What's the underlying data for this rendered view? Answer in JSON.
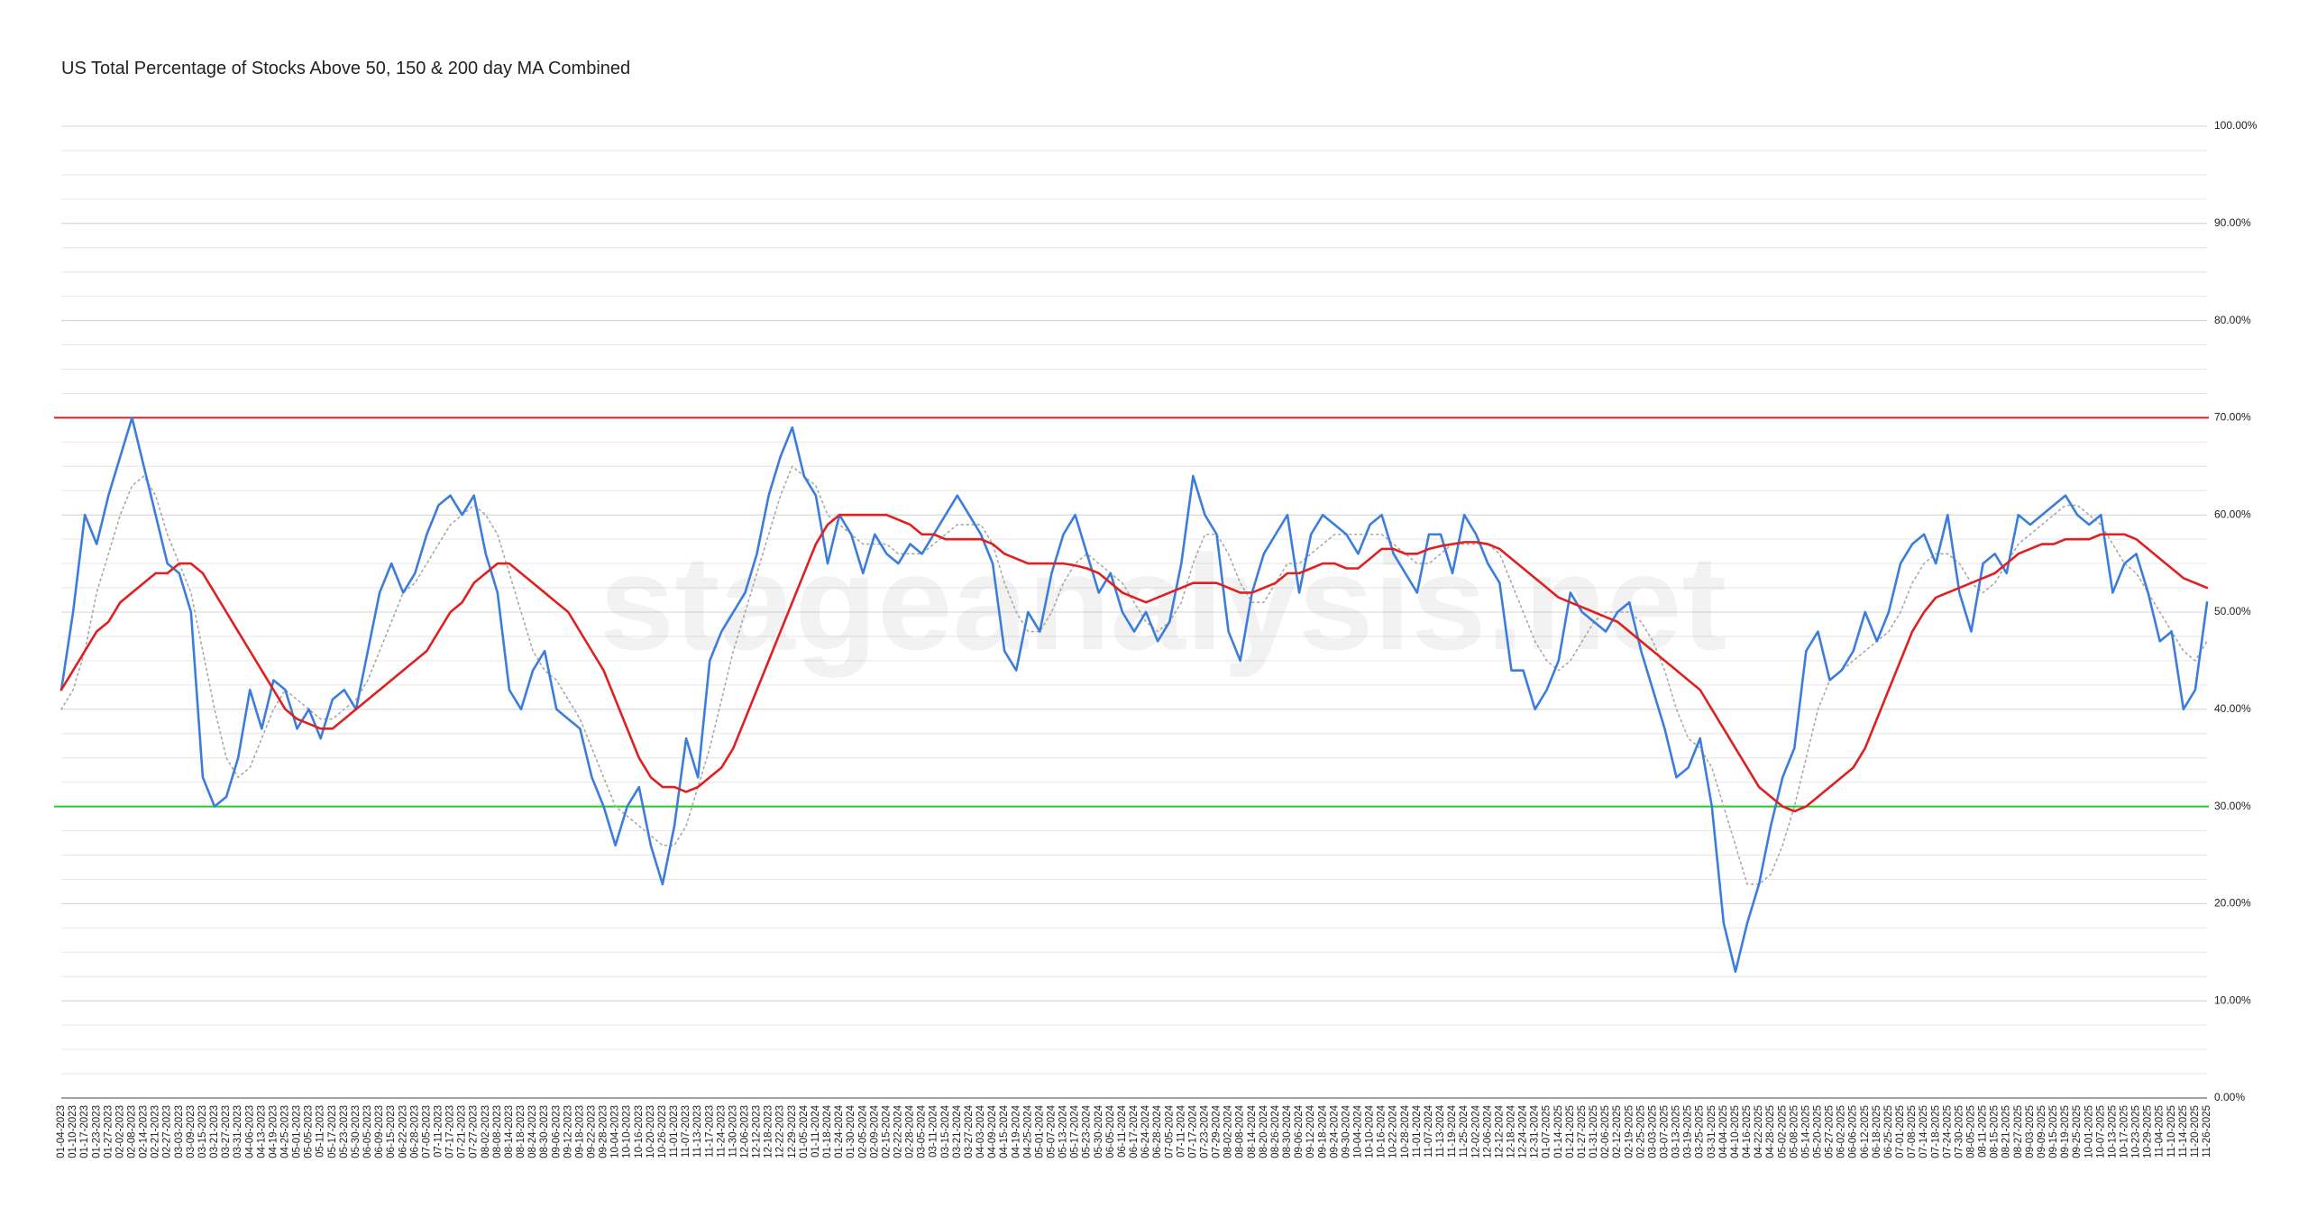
{
  "chart_data": {
    "type": "line",
    "title": "US Total Percentage of Stocks Above 50, 150 & 200 day MA Combined",
    "watermark": "stageanalysis.net",
    "categories": [
      "01-04-2023",
      "01-10-2023",
      "01-17-2023",
      "01-23-2023",
      "01-27-2023",
      "02-02-2023",
      "02-08-2023",
      "02-14-2023",
      "02-21-2023",
      "02-27-2023",
      "03-03-2023",
      "03-09-2023",
      "03-15-2023",
      "03-21-2023",
      "03-27-2023",
      "03-31-2023",
      "04-06-2023",
      "04-13-2023",
      "04-19-2023",
      "04-25-2023",
      "05-01-2023",
      "05-05-2023",
      "05-11-2023",
      "05-17-2023",
      "05-23-2023",
      "05-30-2023",
      "06-05-2023",
      "06-09-2023",
      "06-15-2023",
      "06-22-2023",
      "06-28-2023",
      "07-05-2023",
      "07-11-2023",
      "07-17-2023",
      "07-21-2023",
      "07-27-2023",
      "08-02-2023",
      "08-08-2023",
      "08-14-2023",
      "08-18-2023",
      "08-24-2023",
      "08-30-2023",
      "09-06-2023",
      "09-12-2023",
      "09-18-2023",
      "09-22-2023",
      "09-28-2023",
      "10-04-2023",
      "10-10-2023",
      "10-16-2023",
      "10-20-2023",
      "10-26-2023",
      "11-01-2023",
      "11-07-2023",
      "11-13-2023",
      "11-17-2023",
      "11-24-2023",
      "11-30-2023",
      "12-06-2023",
      "12-12-2023",
      "12-18-2023",
      "12-22-2023",
      "12-29-2023",
      "01-05-2024",
      "01-11-2024",
      "01-18-2024",
      "01-24-2024",
      "01-30-2024",
      "02-05-2024",
      "02-09-2024",
      "02-15-2024",
      "02-22-2024",
      "02-28-2024",
      "03-05-2024",
      "03-11-2024",
      "03-15-2024",
      "03-21-2024",
      "03-27-2024",
      "04-03-2024",
      "04-09-2024",
      "04-15-2024",
      "04-19-2024",
      "04-25-2024",
      "05-01-2024",
      "05-07-2024",
      "05-13-2024",
      "05-17-2024",
      "05-23-2024",
      "05-30-2024",
      "06-05-2024",
      "06-11-2024",
      "06-17-2024",
      "06-24-2024",
      "06-28-2024",
      "07-05-2024",
      "07-11-2024",
      "07-17-2024",
      "07-23-2024",
      "07-29-2024",
      "08-02-2024",
      "08-08-2024",
      "08-14-2024",
      "08-20-2024",
      "08-26-2024",
      "08-30-2024",
      "09-06-2024",
      "09-12-2024",
      "09-18-2024",
      "09-24-2024",
      "09-30-2024",
      "10-04-2024",
      "10-10-2024",
      "10-16-2024",
      "10-22-2024",
      "10-28-2024",
      "11-01-2024",
      "11-07-2024",
      "11-13-2024",
      "11-19-2024",
      "11-25-2024",
      "12-02-2024",
      "12-06-2024",
      "12-12-2024",
      "12-18-2024",
      "12-24-2024",
      "12-31-2024",
      "01-07-2025",
      "01-14-2025",
      "01-21-2025",
      "01-27-2025",
      "01-31-2025",
      "02-06-2025",
      "02-12-2025",
      "02-19-2025",
      "02-25-2025",
      "03-03-2025",
      "03-07-2025",
      "03-13-2025",
      "03-19-2025",
      "03-25-2025",
      "03-31-2025",
      "04-04-2025",
      "04-10-2025",
      "04-16-2025",
      "04-22-2025",
      "04-28-2025",
      "05-02-2025",
      "05-08-2025",
      "05-14-2025",
      "05-20-2025",
      "05-27-2025",
      "06-02-2025",
      "06-06-2025",
      "06-12-2025",
      "06-18-2025",
      "06-25-2025",
      "07-01-2025",
      "07-08-2025",
      "07-14-2025",
      "07-18-2025",
      "07-24-2025",
      "07-30-2025",
      "08-05-2025",
      "08-11-2025",
      "08-15-2025",
      "08-21-2025",
      "08-27-2025",
      "09-03-2025",
      "09-09-2025",
      "09-15-2025",
      "09-19-2025",
      "09-25-2025",
      "10-01-2025",
      "10-07-2025",
      "10-13-2025",
      "10-17-2025",
      "10-23-2025",
      "10-29-2025",
      "11-04-2025",
      "11-10-2025",
      "11-14-2025",
      "11-20-2025",
      "11-26-2025"
    ],
    "series": [
      {
        "color": "#3b7ddd",
        "dashed": false,
        "values": [
          42,
          50,
          60,
          57,
          62,
          66,
          70,
          65,
          60,
          55,
          54,
          50,
          33,
          30,
          31,
          35,
          42,
          38,
          43,
          42,
          38,
          40,
          37,
          41,
          42,
          40,
          46,
          52,
          55,
          52,
          54,
          58,
          61,
          62,
          60,
          62,
          56,
          52,
          42,
          40,
          44,
          46,
          40,
          39,
          38,
          33,
          30,
          26,
          30,
          32,
          26,
          22,
          28,
          37,
          33,
          45,
          48,
          50,
          52,
          56,
          62,
          66,
          69,
          64,
          62,
          55,
          60,
          58,
          54,
          58,
          56,
          55,
          57,
          56,
          58,
          60,
          62,
          60,
          58,
          55,
          46,
          44,
          50,
          48,
          54,
          58,
          60,
          56,
          52,
          54,
          50,
          48,
          50,
          47,
          49,
          55,
          64,
          60,
          58,
          48,
          45,
          52,
          56,
          58,
          60,
          52,
          58,
          60,
          59,
          58,
          56,
          59,
          60,
          56,
          54,
          52,
          58,
          58,
          54,
          60,
          58,
          55,
          53,
          44,
          44,
          40,
          42,
          45,
          52,
          50,
          49,
          48,
          50,
          51,
          46,
          42,
          38,
          33,
          34,
          37,
          30,
          18,
          13,
          18,
          22,
          28,
          33,
          36,
          46,
          48,
          43,
          44,
          46,
          50,
          47,
          50,
          55,
          57,
          58,
          55,
          60,
          52,
          48,
          55,
          56,
          54,
          60,
          59,
          60,
          61,
          62,
          60,
          59,
          60,
          52,
          55,
          56,
          52,
          47,
          48,
          40,
          42,
          51
        ]
      },
      {
        "color": "#e02020",
        "dashed": false,
        "values": [
          42,
          44,
          46,
          48,
          49,
          51,
          52,
          53,
          54,
          54,
          55,
          55,
          54,
          52,
          50,
          48,
          46,
          44,
          42,
          40,
          39,
          38.5,
          38,
          38,
          39,
          40,
          41,
          42,
          43,
          44,
          45,
          46,
          48,
          50,
          51,
          53,
          54,
          55,
          55,
          54,
          53,
          52,
          51,
          50,
          48,
          46,
          44,
          41,
          38,
          35,
          33,
          32,
          32,
          31.5,
          32,
          33,
          34,
          36,
          39,
          42,
          45,
          48,
          51,
          54,
          57,
          59,
          60,
          60,
          60,
          60,
          60,
          59.5,
          59,
          58,
          58,
          57.5,
          57.5,
          57.5,
          57.5,
          57,
          56,
          55.5,
          55,
          55,
          55,
          55,
          54.8,
          54.5,
          54,
          53,
          52,
          51.5,
          51,
          51.5,
          52,
          52.5,
          53,
          53,
          53,
          52.5,
          52,
          52,
          52.5,
          53,
          54,
          54,
          54.5,
          55,
          55,
          54.5,
          54.5,
          55.5,
          56.5,
          56.5,
          56,
          56,
          56.5,
          56.8,
          57,
          57.2,
          57.2,
          57,
          56.5,
          55.5,
          54.5,
          53.5,
          52.5,
          51.5,
          51,
          50.5,
          50,
          49.5,
          49,
          48,
          47,
          46,
          45,
          44,
          43,
          42,
          40,
          38,
          36,
          34,
          32,
          31,
          30,
          29.5,
          30,
          31,
          32,
          33,
          34,
          36,
          39,
          42,
          45,
          48,
          50,
          51.5,
          52,
          52.5,
          53,
          53.5,
          54,
          55,
          56,
          56.5,
          57,
          57,
          57.5,
          57.5,
          57.5,
          58,
          58,
          58,
          57.5,
          56.5,
          55.5,
          54.5,
          53.5,
          53,
          52.5
        ]
      },
      {
        "color": "#a8a8a8",
        "dashed": true,
        "values": [
          40,
          42,
          46,
          52,
          56,
          60,
          63,
          64,
          62,
          58,
          55,
          52,
          46,
          40,
          35,
          33,
          34,
          37,
          40,
          42,
          41,
          40,
          39,
          39,
          40,
          41,
          43,
          46,
          49,
          52,
          53,
          55,
          57,
          59,
          60,
          61,
          60,
          58,
          54,
          50,
          46,
          44,
          43,
          41,
          39,
          36,
          33,
          30,
          29,
          28,
          27,
          26,
          26,
          28,
          32,
          36,
          41,
          46,
          50,
          54,
          58,
          62,
          65,
          64,
          63,
          60,
          59,
          58,
          57,
          57,
          57,
          56,
          56,
          56,
          57,
          58,
          59,
          59,
          59,
          57,
          53,
          50,
          48,
          48,
          50,
          53,
          55,
          56,
          55,
          54,
          53,
          51,
          49,
          48,
          49,
          51,
          55,
          58,
          58,
          56,
          53,
          51,
          51,
          53,
          55,
          55,
          56,
          57,
          58,
          58,
          58,
          58,
          58,
          57,
          56,
          55,
          55,
          56,
          57,
          57,
          57,
          57,
          56,
          53,
          50,
          47,
          45,
          44,
          45,
          47,
          49,
          50,
          50,
          50,
          49,
          47,
          44,
          40,
          37,
          36,
          34,
          30,
          26,
          22,
          22,
          23,
          26,
          30,
          35,
          40,
          43,
          44,
          45,
          46,
          47,
          48,
          50,
          53,
          55,
          56,
          56,
          55,
          53,
          52,
          53,
          55,
          57,
          58,
          59,
          60,
          61,
          61,
          60,
          59,
          57,
          55,
          54,
          52,
          50,
          48,
          46,
          45,
          47
        ]
      }
    ],
    "reference_lines": [
      {
        "value": 70,
        "color": "#d42020"
      },
      {
        "value": 30,
        "color": "#22cc22"
      }
    ],
    "ylim": [
      0,
      100
    ],
    "yticks": [
      {
        "value": 0,
        "label": "0.00%"
      },
      {
        "value": 10,
        "label": "10.00%"
      },
      {
        "value": 20,
        "label": "20.00%"
      },
      {
        "value": 30,
        "label": "30.00%"
      },
      {
        "value": 40,
        "label": "40.00%"
      },
      {
        "value": 50,
        "label": "50.00%"
      },
      {
        "value": 60,
        "label": "60.00%"
      },
      {
        "value": 70,
        "label": "70.00%"
      },
      {
        "value": 80,
        "label": "80.00%"
      },
      {
        "value": 90,
        "label": "90.00%"
      },
      {
        "value": 100,
        "label": "100.00%"
      }
    ],
    "grid": true,
    "minor_grid_step": 2.5
  }
}
